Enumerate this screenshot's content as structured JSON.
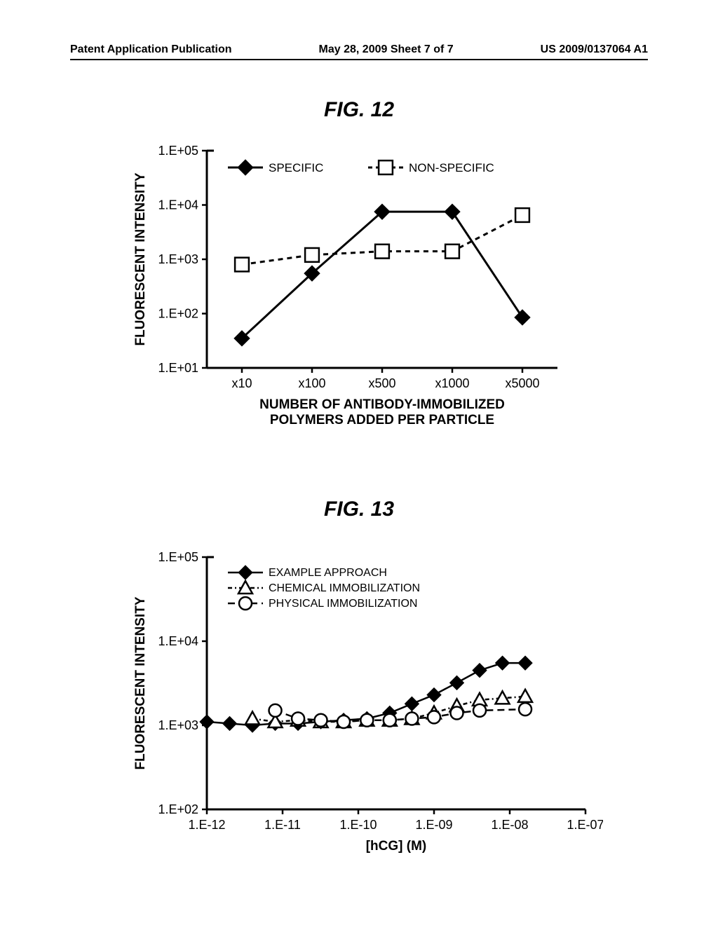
{
  "header": {
    "left": "Patent Application Publication",
    "center": "May 28, 2009  Sheet 7 of 7",
    "right": "US 2009/0137064 A1"
  },
  "fig12": {
    "title": "FIG.  12",
    "type": "line",
    "ylabel": "FLUORESCENT INTENSITY",
    "xlabel": "NUMBER OF ANTIBODY-IMMOBILIZED\nPOLYMERS ADDED PER PARTICLE",
    "yscale": "log",
    "ylim": [
      10,
      100000
    ],
    "yticks": [
      "1.E+01",
      "1.E+02",
      "1.E+03",
      "1.E+04",
      "1.E+05"
    ],
    "xticks": [
      "x10",
      "x100",
      "x500",
      "x1000",
      "x5000"
    ],
    "legend": [
      {
        "label": "SPECIFIC",
        "marker": "diamond-filled",
        "color": "#000000",
        "dash": "solid"
      },
      {
        "label": "NON-SPECIFIC",
        "marker": "square-open",
        "color": "#000000",
        "dash": "dashed"
      }
    ],
    "series": {
      "specific": [
        35,
        550,
        7500,
        7500,
        85
      ],
      "nonspecific": [
        800,
        1200,
        1400,
        1400,
        6500
      ]
    },
    "colors": {
      "axis": "#000000",
      "line": "#000000",
      "background": "#ffffff"
    },
    "line_width": 3,
    "marker_size": 11,
    "label_fontsize": 19,
    "tick_fontsize": 18,
    "legend_fontsize": 17
  },
  "fig13": {
    "title": "FIG.  13",
    "type": "line",
    "ylabel": "FLUORESCENT INTENSITY",
    "xlabel": "[hCG] (M)",
    "yscale": "log",
    "xscale": "log",
    "ylim": [
      100,
      100000
    ],
    "xlim": [
      1e-12,
      1e-07
    ],
    "yticks": [
      "1.E+02",
      "1.E+03",
      "1.E+04",
      "1.E+05"
    ],
    "xticks": [
      "1.E-12",
      "1.E-11",
      "1.E-10",
      "1.E-09",
      "1.E-08",
      "1.E-07"
    ],
    "legend": [
      {
        "label": "EXAMPLE APPROACH",
        "marker": "diamond-filled",
        "color": "#000000",
        "dash": "solid"
      },
      {
        "label": "CHEMICAL IMMOBILIZATION",
        "marker": "triangle-open",
        "color": "#000000",
        "dash": "dash-dot"
      },
      {
        "label": "PHYSICAL IMMOBILIZATION",
        "marker": "circle-open",
        "color": "#000000",
        "dash": "long-dash"
      }
    ],
    "series": {
      "example_x": [
        1e-12,
        2e-12,
        4e-12,
        8e-12,
        1.6e-11,
        3.2e-11,
        6.4e-11,
        1.3e-10,
        2.6e-10,
        5.1e-10,
        1e-09,
        2e-09,
        4e-09,
        8e-09,
        1.6e-08
      ],
      "example_y": [
        1100,
        1050,
        1000,
        1050,
        1050,
        1100,
        1150,
        1200,
        1400,
        1800,
        2300,
        3200,
        4500,
        5500,
        5500
      ],
      "chemical_x": [
        4e-12,
        8e-12,
        1.6e-11,
        3.2e-11,
        6.4e-11,
        1.3e-10,
        2.6e-10,
        5.1e-10,
        1e-09,
        2e-09,
        4e-09,
        8e-09,
        1.6e-08
      ],
      "chemical_y": [
        1200,
        1100,
        1150,
        1100,
        1100,
        1150,
        1150,
        1200,
        1400,
        1700,
        2000,
        2100,
        2200
      ],
      "physical_x": [
        8e-12,
        1.6e-11,
        3.2e-11,
        6.4e-11,
        1.3e-10,
        2.6e-10,
        5.1e-10,
        1e-09,
        2e-09,
        4e-09,
        1.6e-08
      ],
      "physical_y": [
        1500,
        1200,
        1150,
        1100,
        1150,
        1150,
        1200,
        1250,
        1400,
        1500,
        1550
      ]
    },
    "colors": {
      "axis": "#000000",
      "line": "#000000",
      "background": "#ffffff"
    },
    "line_width": 2.5,
    "marker_size": 10,
    "label_fontsize": 19,
    "tick_fontsize": 18,
    "legend_fontsize": 16
  }
}
